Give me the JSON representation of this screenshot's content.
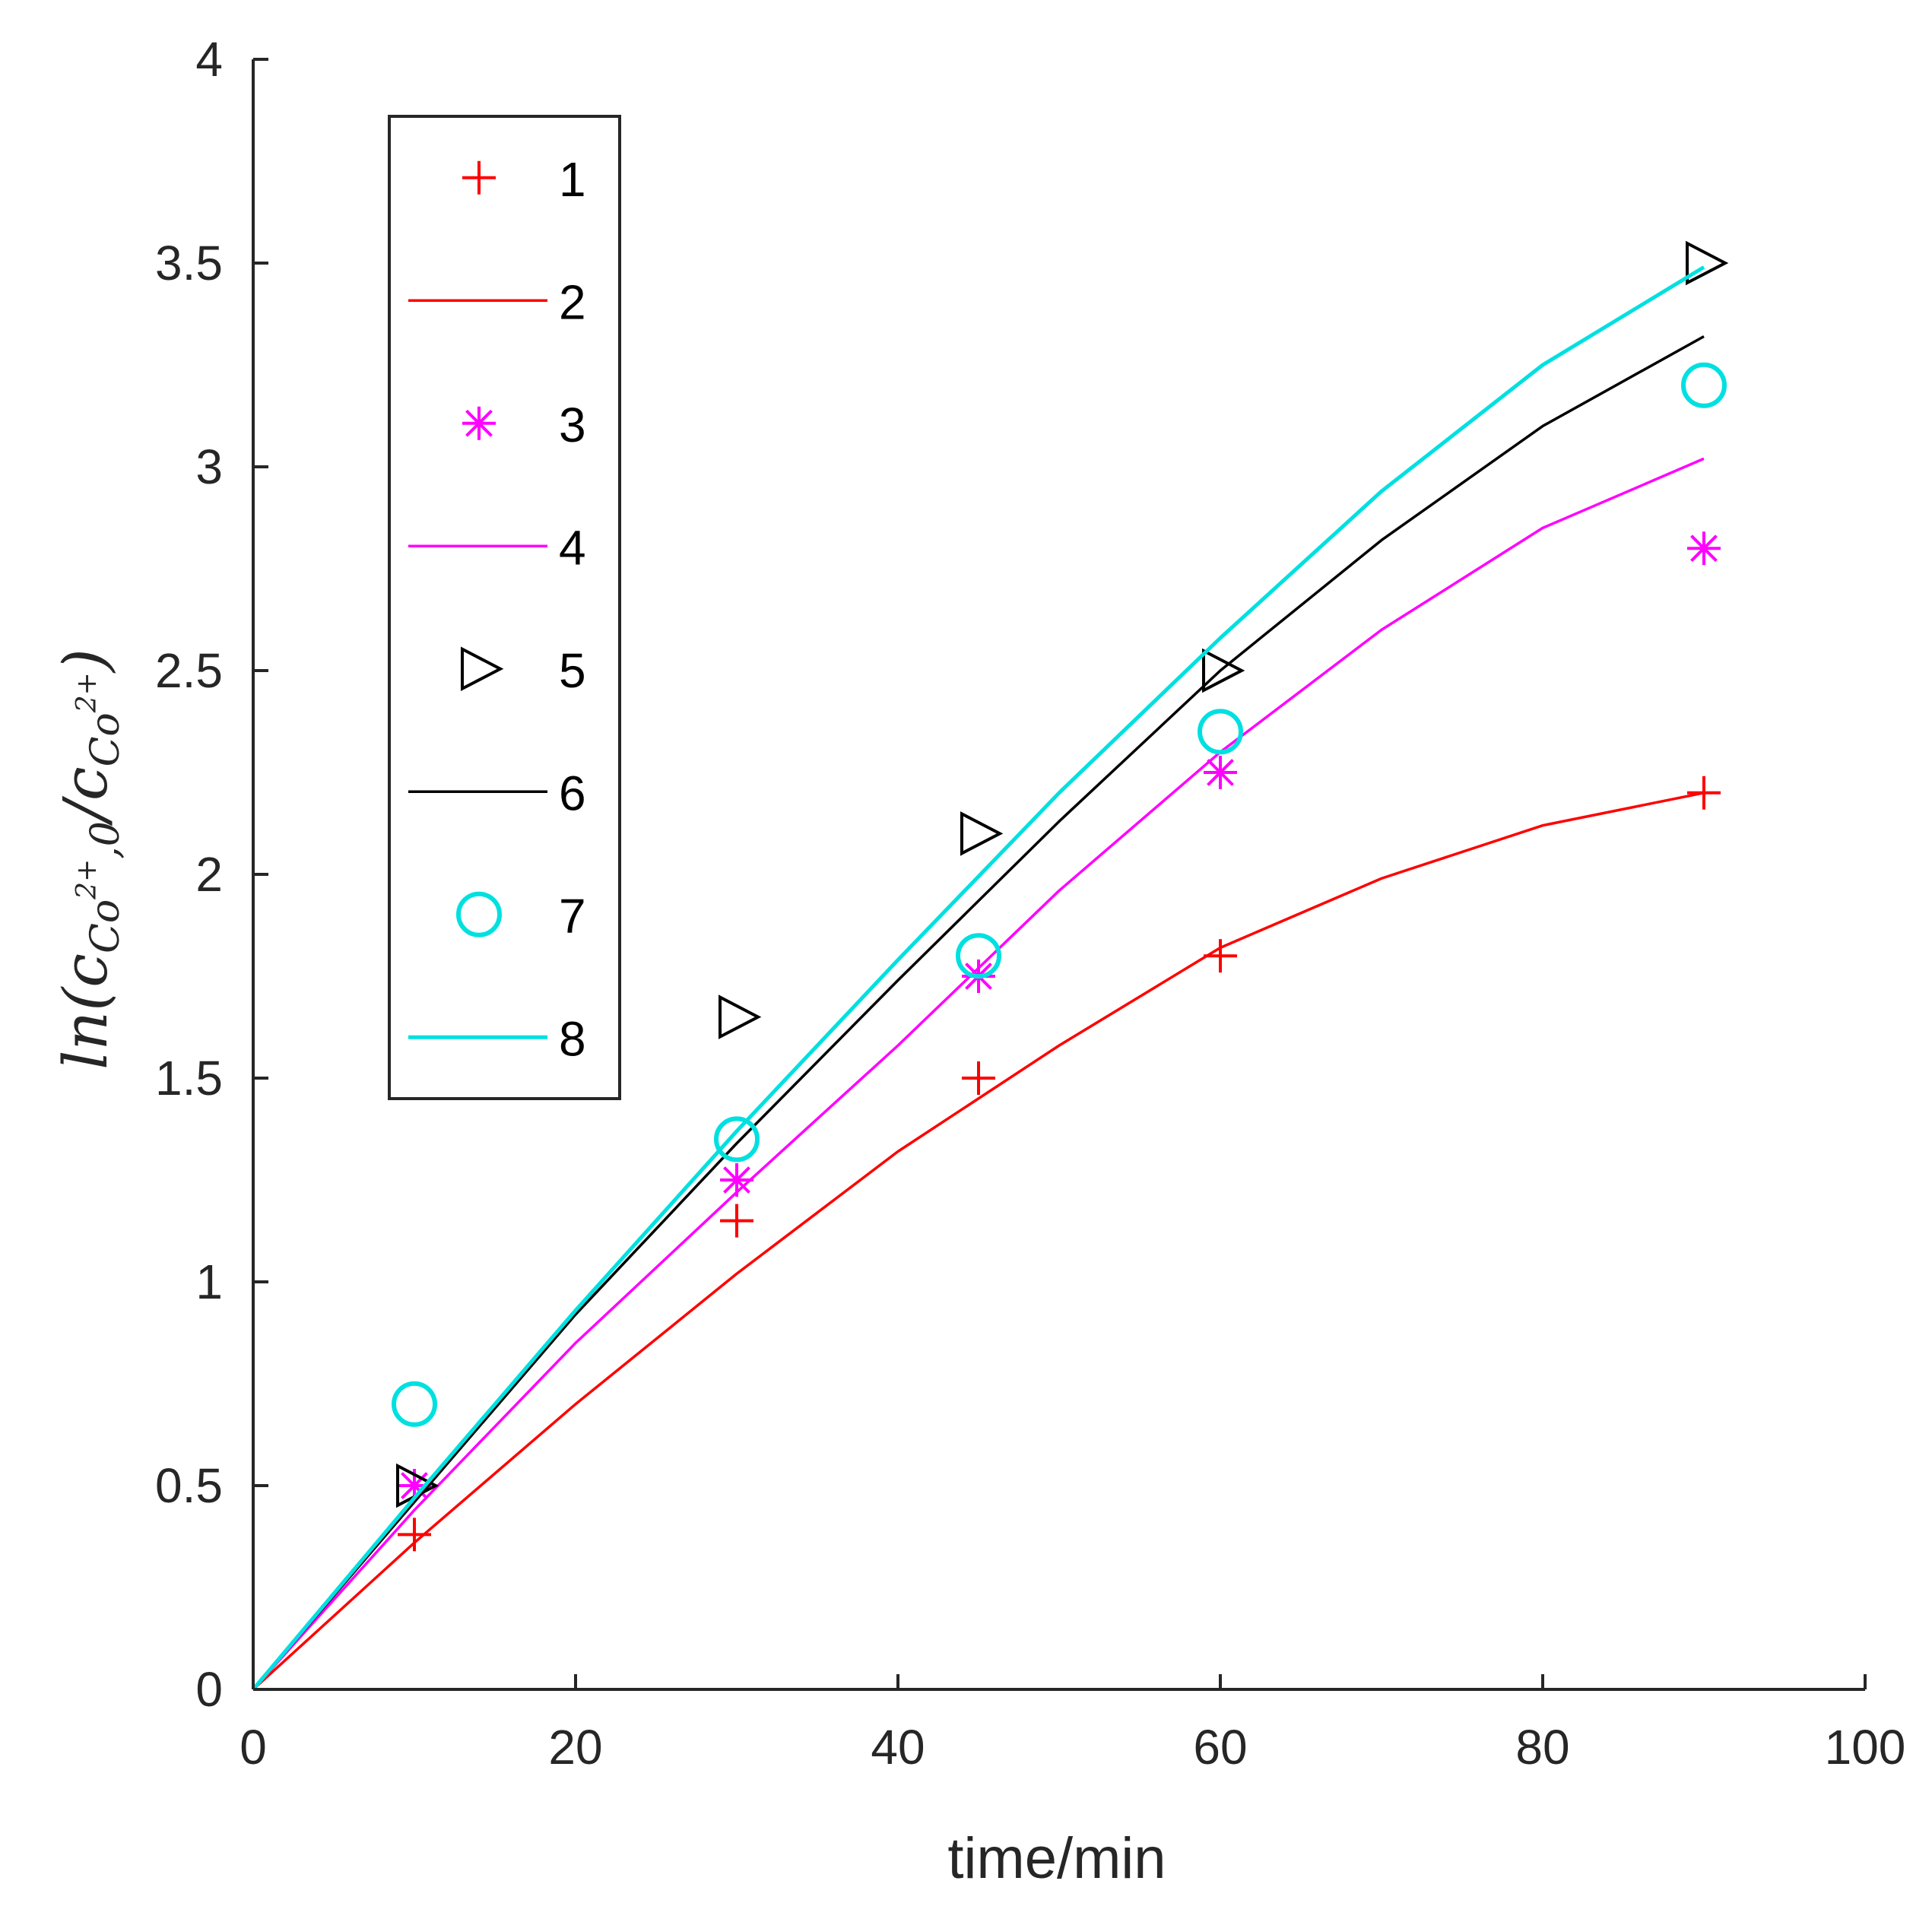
{
  "chart_data": {
    "type": "scatter",
    "xlabel": "time/min",
    "ylabel": {
      "prefix": "ln(c",
      "sub1": "Co",
      "sup1": "2+",
      "sub1_tail": ",0",
      "slash": "/c",
      "sub2": "Co",
      "sup2": "2+",
      "suffix": ")"
    },
    "xlim": [
      0,
      100
    ],
    "ylim": [
      0,
      4
    ],
    "xticks": [
      0,
      20,
      40,
      60,
      80,
      100
    ],
    "yticks": [
      0,
      0.5,
      1,
      1.5,
      2,
      2.5,
      3,
      3.5,
      4
    ],
    "xtick_labels": [
      "0",
      "20",
      "40",
      "60",
      "80",
      "100"
    ],
    "ytick_labels": [
      "0",
      "0.5",
      "1",
      "1.5",
      "2",
      "2.5",
      "3",
      "3.5",
      "4"
    ],
    "legend_position": "upper-left",
    "series": [
      {
        "name": "1",
        "kind": "marker",
        "marker": "plus",
        "color": "#ff0000",
        "x": [
          10,
          30,
          45,
          60,
          90
        ],
        "y": [
          0.38,
          1.15,
          1.5,
          1.8,
          2.2
        ]
      },
      {
        "name": "2",
        "kind": "line",
        "color": "#ff0000",
        "x": [
          0,
          10,
          20,
          30,
          40,
          50,
          60,
          70,
          80,
          90
        ],
        "y": [
          0,
          0.36,
          0.7,
          1.02,
          1.32,
          1.58,
          1.82,
          1.99,
          2.12,
          2.2
        ]
      },
      {
        "name": "3",
        "kind": "marker",
        "marker": "asterisk",
        "color": "#ff00ff",
        "x": [
          10,
          30,
          45,
          60,
          90
        ],
        "y": [
          0.5,
          1.25,
          1.75,
          2.25,
          2.8
        ]
      },
      {
        "name": "4",
        "kind": "line",
        "color": "#ff00ff",
        "x": [
          0,
          10,
          20,
          30,
          40,
          50,
          60,
          70,
          80,
          90
        ],
        "y": [
          0,
          0.44,
          0.85,
          1.22,
          1.58,
          1.96,
          2.3,
          2.6,
          2.85,
          3.02
        ]
      },
      {
        "name": "5",
        "kind": "marker",
        "marker": "triangle-right",
        "color": "#000000",
        "x": [
          10,
          30,
          45,
          60,
          90
        ],
        "y": [
          0.5,
          1.65,
          2.1,
          2.5,
          3.5
        ]
      },
      {
        "name": "6",
        "kind": "line",
        "color": "#000000",
        "x": [
          0,
          10,
          20,
          30,
          40,
          50,
          60,
          70,
          80,
          90
        ],
        "y": [
          0,
          0.46,
          0.92,
          1.34,
          1.74,
          2.13,
          2.5,
          2.82,
          3.1,
          3.32
        ]
      },
      {
        "name": "7",
        "kind": "marker",
        "marker": "circle",
        "color": "#00e0e0",
        "x": [
          10,
          30,
          45,
          60,
          90
        ],
        "y": [
          0.7,
          1.35,
          1.8,
          2.35,
          3.2
        ]
      },
      {
        "name": "8",
        "kind": "line",
        "color": "#00e0e0",
        "x": [
          0,
          10,
          20,
          30,
          40,
          50,
          60,
          70,
          80,
          90
        ],
        "y": [
          0,
          0.47,
          0.93,
          1.37,
          1.79,
          2.2,
          2.58,
          2.94,
          3.25,
          3.49
        ]
      }
    ]
  }
}
